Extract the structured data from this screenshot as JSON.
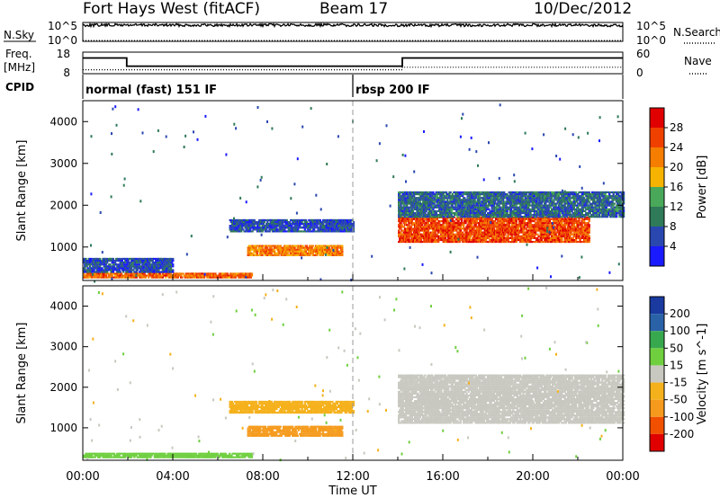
{
  "header": {
    "station": "Fort Hays West (fitACF)",
    "beam": "Beam 17",
    "date": "10/Dec/2012"
  },
  "strip_labels": {
    "nsky": "N.Sky",
    "nsearch": "N.Search",
    "freq_line1": "Freq.",
    "freq_line2": "[MHz]",
    "nave": "Nave",
    "cpid": "CPID"
  },
  "colors": {
    "power_scale": [
      "#1a1aff",
      "#2a47b0",
      "#2f7a58",
      "#4aa85a",
      "#f6b400",
      "#f57d00",
      "#f04000",
      "#e00000"
    ],
    "velocity_scale": [
      "#e00000",
      "#f05000",
      "#f59a1c",
      "#f5b11c",
      "#c8c8c0",
      "#6fcf3f",
      "#38a84f",
      "#2a62a8",
      "#1a3aa0"
    ],
    "ground_scatter": "#bfbfb8"
  },
  "chart_data": [
    {
      "type": "line",
      "panel": "noise",
      "series": [
        {
          "name": "N.Sky",
          "style": "solid",
          "x": [
            0,
            2,
            4,
            6,
            8,
            10,
            12,
            14,
            16,
            18,
            20,
            22,
            24
          ],
          "y": [
            20000,
            21000,
            20000,
            19000,
            20000,
            21000,
            20000,
            19000,
            18000,
            19000,
            20000,
            18000,
            15000
          ]
        },
        {
          "name": "N.Search",
          "style": "dotted",
          "x": [
            0,
            24
          ],
          "y": [
            1,
            1
          ]
        }
      ],
      "yaxis_left": {
        "ticks": [
          "10^5",
          "10^0"
        ],
        "scale": "log"
      },
      "yaxis_right": {
        "ticks": [
          "10^5",
          "10^0"
        ],
        "scale": "log"
      }
    },
    {
      "type": "line",
      "panel": "frequency",
      "series": [
        {
          "name": "Freq.",
          "style": "solid",
          "x": [
            0,
            1.95,
            1.95,
            14.2,
            14.2,
            24
          ],
          "y": [
            15.3,
            15.3,
            11.5,
            11.5,
            15.3,
            15.3
          ]
        },
        {
          "name": "Nave",
          "style": "dotted",
          "x": [
            0,
            14.2,
            14.2,
            24
          ],
          "y": [
            11,
            11,
            18,
            18
          ]
        }
      ],
      "yaxis_left": {
        "ticks": [
          18,
          8
        ],
        "range": [
          8,
          18
        ],
        "label": "Freq. [MHz]"
      },
      "yaxis_right": {
        "ticks": [
          60,
          0
        ],
        "range": [
          0,
          60
        ]
      }
    },
    {
      "type": "table",
      "panel": "cpid",
      "segments": [
        {
          "start": 0,
          "end": 12,
          "label": "normal (fast) 151 IF"
        },
        {
          "start": 12,
          "end": 24,
          "label": "rbsp 200 IF"
        }
      ]
    },
    {
      "type": "heatmap",
      "panel": "power",
      "x_range": [
        0,
        24
      ],
      "y_range": [
        200,
        4500
      ],
      "ylabel": "Slant Range [km]",
      "yticks": [
        1000,
        2000,
        3000,
        4000
      ],
      "colorbar": {
        "label": "Power [dB]",
        "ticks": [
          4,
          8,
          12,
          16,
          20,
          24,
          28
        ],
        "range": [
          0,
          32
        ]
      },
      "features": [
        {
          "t0": 0.0,
          "t1": 7.5,
          "r0": 250,
          "r1": 380,
          "value": 24
        },
        {
          "t0": 0.0,
          "t1": 4.0,
          "r0": 380,
          "r1": 700,
          "value": 6
        },
        {
          "t0": 7.3,
          "t1": 11.5,
          "r0": 780,
          "r1": 1050,
          "value": 22
        },
        {
          "t0": 6.5,
          "t1": 12.0,
          "r0": 1350,
          "r1": 1650,
          "value": 6
        },
        {
          "t0": 14.0,
          "t1": 22.5,
          "r0": 1100,
          "r1": 1700,
          "value": 26
        },
        {
          "t0": 14.0,
          "t1": 24.0,
          "r0": 1700,
          "r1": 2300,
          "value": 8
        }
      ]
    },
    {
      "type": "heatmap",
      "panel": "velocity",
      "x_range": [
        0,
        24
      ],
      "y_range": [
        200,
        4500
      ],
      "xlabel": "Time UT",
      "ylabel": "Slant Range [km]",
      "yticks": [
        1000,
        2000,
        3000,
        4000
      ],
      "xticks": [
        "00:00",
        "04:00",
        "08:00",
        "12:00",
        "16:00",
        "20:00",
        "00:00"
      ],
      "xtick_values": [
        0,
        4,
        8,
        12,
        16,
        20,
        24
      ],
      "colorbar": {
        "label": "Velocity [m s^-1]",
        "ticks": [
          200,
          100,
          50,
          15,
          -15,
          -50,
          -100,
          -200
        ]
      },
      "features": [
        {
          "t0": 0.0,
          "t1": 7.5,
          "r0": 250,
          "r1": 380,
          "value": 30
        },
        {
          "t0": 7.3,
          "t1": 11.5,
          "r0": 780,
          "r1": 1050,
          "value": -60
        },
        {
          "t0": 6.5,
          "t1": 12.0,
          "r0": 1350,
          "r1": 1650,
          "value": -45
        },
        {
          "t0": 14.0,
          "t1": 24.0,
          "r0": 1100,
          "r1": 2300,
          "value": 0
        }
      ]
    }
  ]
}
